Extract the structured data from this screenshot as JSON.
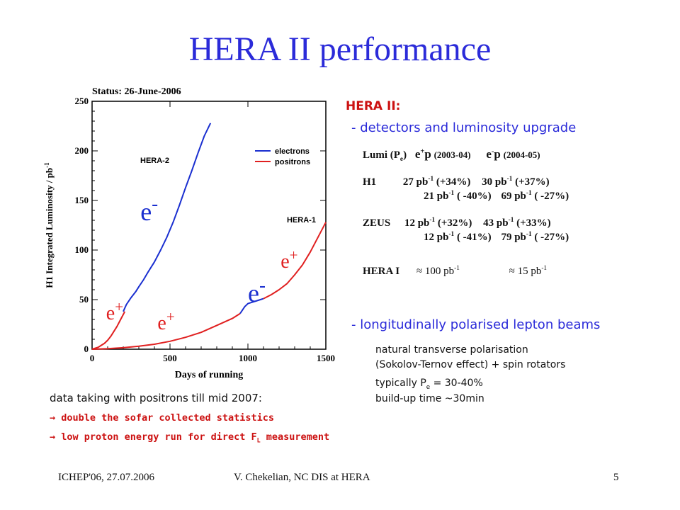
{
  "title": "HERA II performance",
  "chart_data": {
    "type": "line",
    "status": "Status: 26-June-2006",
    "xlabel": "Days of running",
    "ylabel": "H1 Integrated Luminosity / pb",
    "ylabel_sup": "-1",
    "xlim": [
      0,
      1500
    ],
    "ylim": [
      0,
      250
    ],
    "xticks": [
      0,
      500,
      1000,
      1500
    ],
    "yticks": [
      0,
      50,
      100,
      150,
      200,
      250
    ],
    "legend": [
      {
        "name": "electrons",
        "color": "#1a2fd0"
      },
      {
        "name": "positrons",
        "color": "#e02020"
      }
    ],
    "labels": {
      "hera2": "HERA-2",
      "hera1": "HERA-1"
    },
    "series": [
      {
        "name": "HERA-2 positrons",
        "color": "#e02020",
        "x": [
          0,
          20,
          40,
          60,
          80,
          100,
          120,
          140,
          160,
          180,
          200,
          210
        ],
        "y": [
          0,
          1,
          2,
          4,
          6,
          9,
          13,
          18,
          23,
          29,
          35,
          38
        ]
      },
      {
        "name": "HERA-2 electrons",
        "color": "#1a2fd0",
        "x": [
          200,
          220,
          250,
          280,
          300,
          330,
          360,
          400,
          440,
          480,
          520,
          560,
          600,
          640,
          680,
          720,
          760
        ],
        "y": [
          38,
          45,
          52,
          58,
          63,
          70,
          78,
          88,
          100,
          113,
          128,
          145,
          163,
          180,
          198,
          215,
          228
        ]
      },
      {
        "name": "HERA-1 positrons (early)",
        "color": "#e02020",
        "x": [
          0,
          100,
          200,
          300,
          400,
          500,
          600,
          700,
          800,
          900,
          950
        ],
        "y": [
          0,
          0.5,
          1.5,
          3,
          5,
          8,
          12,
          17,
          24,
          31,
          36
        ]
      },
      {
        "name": "HERA-1 electrons",
        "color": "#1a2fd0",
        "x": [
          950,
          980,
          1000,
          1040,
          1080,
          1100
        ],
        "y": [
          36,
          43,
          46,
          48,
          50,
          51
        ]
      },
      {
        "name": "HERA-1 positrons (late)",
        "color": "#e02020",
        "x": [
          1100,
          1150,
          1200,
          1250,
          1300,
          1350,
          1400,
          1450,
          1500
        ],
        "y": [
          51,
          55,
          60,
          66,
          75,
          85,
          98,
          113,
          128
        ]
      }
    ],
    "annotations": [
      {
        "text": "e",
        "sup": "-",
        "x": 310,
        "y": 130,
        "color": "#1a2fd0",
        "size": 36
      },
      {
        "text": "e",
        "sup": "+",
        "x": 90,
        "y": 30,
        "color": "#e02020",
        "size": 28
      },
      {
        "text": "e",
        "sup": "+",
        "x": 420,
        "y": 20,
        "color": "#e02020",
        "size": 28
      },
      {
        "text": "e",
        "sup": "-",
        "x": 1000,
        "y": 48,
        "color": "#1a2fd0",
        "size": 36
      },
      {
        "text": "e",
        "sup": "+",
        "x": 1210,
        "y": 82,
        "color": "#e02020",
        "size": 28
      }
    ]
  },
  "hera2_heading": "HERA II:",
  "bullet_detectors": "- detectors and luminosity upgrade",
  "table": {
    "header_lumi": "Lumi (P",
    "header_sub": "e",
    "header_close": ")",
    "header_eplus": "e",
    "header_eplus_sup": "+",
    "header_eplus_p": "p",
    "header_eplus_years": "(2003-04)",
    "header_eminus": "e",
    "header_eminus_sup": "-",
    "header_eminus_p": "p",
    "header_eminus_years": "(2004-05)",
    "h1": "H1",
    "h1_row1_a": "27 pb",
    "h1_row1_a_pct": "(+34%)",
    "h1_row1_b": "30 pb",
    "h1_row1_b_pct": "(+37%)",
    "h1_row2_a": "21 pb",
    "h1_row2_a_pct": "( -40%)",
    "h1_row2_b": "69 pb",
    "h1_row2_b_pct": "( -27%)",
    "zeus": "ZEUS",
    "zeus_row1_a": "12 pb",
    "zeus_row1_a_pct": "(+32%)",
    "zeus_row1_b": "43 pb",
    "zeus_row1_b_pct": "(+33%)",
    "zeus_row2_a": "12 pb",
    "zeus_row2_a_pct": "( -41%)",
    "zeus_row2_b": "79 pb",
    "zeus_row2_b_pct": "( -27%)",
    "hera1": "HERA I",
    "hera1_a": "≈ 100 pb",
    "hera1_b": "≈ 15 pb",
    "inv": "-1"
  },
  "bullet_polarised": "- longitudinally polarised lepton beams",
  "pol_lines": {
    "line1": "natural transverse polarisation",
    "line2": "(Sokolov-Ternov effect) + spin rotators",
    "line3_pre": "typically P",
    "line3_sub": "e",
    "line3_post": " = 30-40%",
    "line4": "build-up time ~30min"
  },
  "note": "data taking with positrons till mid 2007:",
  "arrow1": "→ double the sofar collected statistics",
  "arrow2_pre": "→ low proton energy run for direct F",
  "arrow2_sub": "L",
  "arrow2_post": " measurement",
  "footer": {
    "left": "ICHEP'06, 27.07.2006",
    "center": "V. Chekelian,  NC DIS at HERA",
    "page": "5"
  }
}
